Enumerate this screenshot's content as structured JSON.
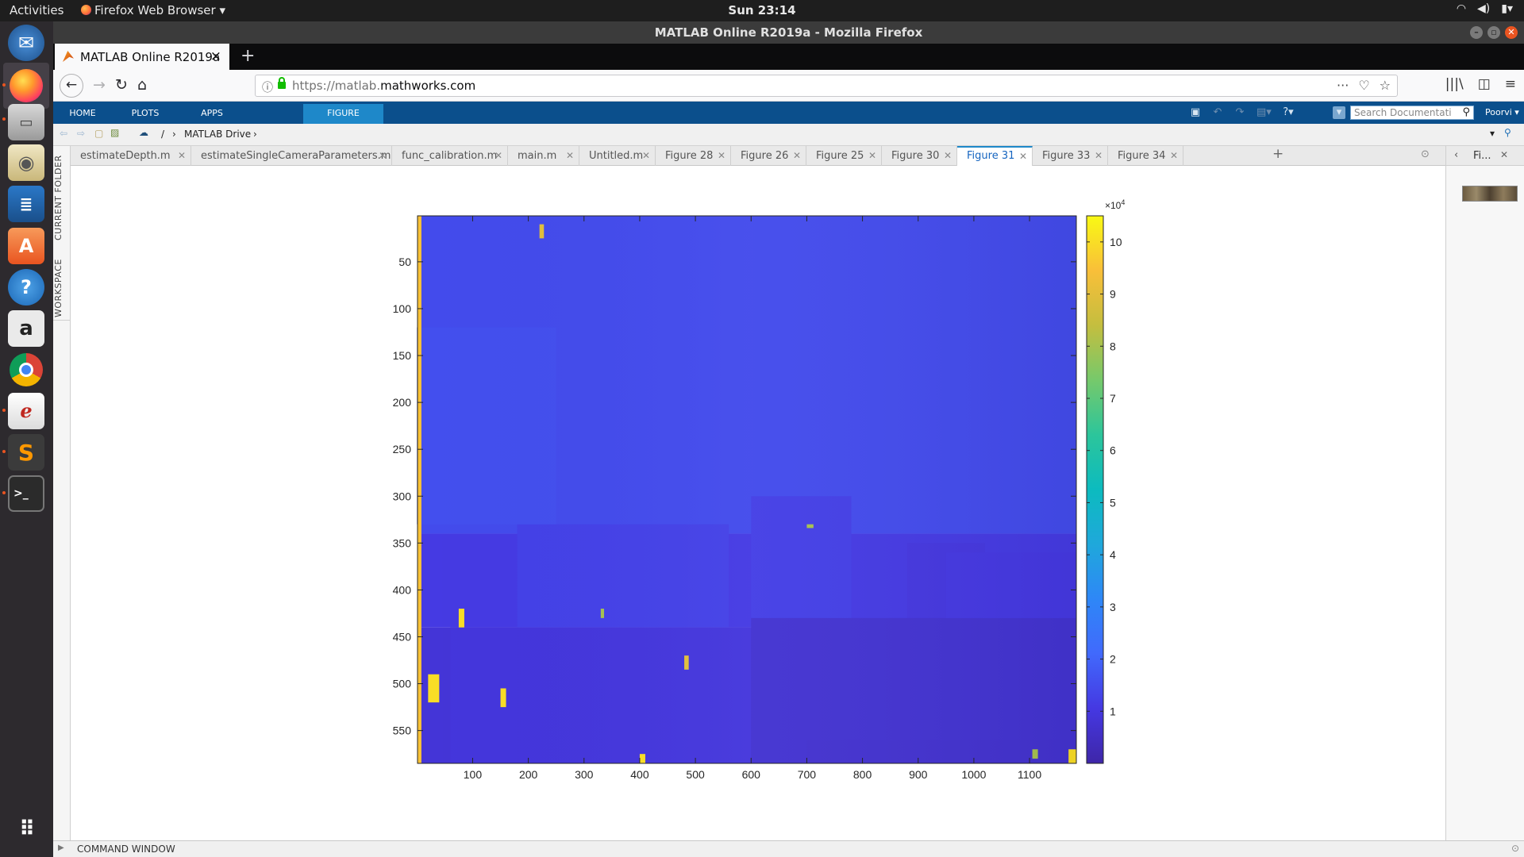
{
  "gnome": {
    "activities": "Activities",
    "app_menu": "Firefox Web Browser",
    "clock": "Sun 23:14"
  },
  "window": {
    "title": "MATLAB Online R2019a - Mozilla Firefox"
  },
  "browser": {
    "tab_title": "MATLAB Online R2019a",
    "url_prefix": "https://matlab.",
    "url_domain": "mathworks.com"
  },
  "matlab": {
    "toolstrip_tabs": [
      "HOME",
      "PLOTS",
      "APPS",
      "FIGURE"
    ],
    "active_toolstrip_tab": "FIGURE",
    "search_placeholder": "Search Documentati",
    "user": "Poorvi",
    "path_root": "/",
    "path_folder": "MATLAB Drive",
    "side_tabs": [
      "CURRENT FOLDER",
      "WORKSPACE"
    ],
    "doc_tabs": [
      "estimateDepth.m",
      "estimateSingleCameraParameters.m",
      "func_calibration.m",
      "main.m",
      "Untitled.m",
      "Figure 28",
      "Figure 26",
      "Figure 25",
      "Figure 30",
      "Figure 31",
      "Figure 33",
      "Figure 34"
    ],
    "active_doc_tab": "Figure 31",
    "right_panel_title": "Fi...",
    "command_window": "COMMAND WINDOW"
  },
  "colors": {
    "toolstrip": "#0b4f8c",
    "active_tab": "#1e88c9",
    "dock": "#2d2a2e",
    "ubuntu_orange": "#e95420"
  },
  "chart_data": {
    "type": "heatmap",
    "title": "",
    "xlabel": "",
    "ylabel": "",
    "colormap": "parula",
    "xlim": [
      1,
      1184
    ],
    "ylim": [
      1,
      585
    ],
    "y_reversed": true,
    "x_ticks": [
      100,
      200,
      300,
      400,
      500,
      600,
      700,
      800,
      900,
      1000,
      1100
    ],
    "y_ticks": [
      50,
      100,
      150,
      200,
      250,
      300,
      350,
      400,
      450,
      500,
      550
    ],
    "colorbar": {
      "exponent_label": "×10",
      "exponent": "4",
      "ticks": [
        1,
        2,
        3,
        4,
        5,
        6,
        7,
        8,
        9,
        10
      ],
      "range": [
        0,
        10.5
      ]
    },
    "regions": [
      {
        "name": "upper",
        "y_range": [
          1,
          340
        ],
        "value": 1.45
      },
      {
        "name": "middle",
        "y_range": [
          340,
          440
        ],
        "value": 1.1
      },
      {
        "name": "lower",
        "y_range": [
          440,
          585
        ],
        "value": 0.85
      },
      {
        "name": "left-edge",
        "x_range": [
          1,
          8
        ],
        "value": 9.5
      }
    ]
  }
}
